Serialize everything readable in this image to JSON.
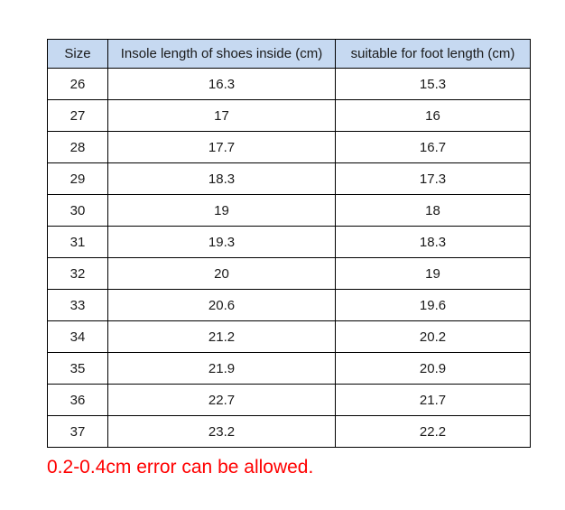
{
  "chart_data": {
    "type": "table",
    "columns": [
      "Size",
      "Insole length of shoes inside (cm)",
      "suitable for foot length (cm)"
    ],
    "rows": [
      [
        "26",
        "16.3",
        "15.3"
      ],
      [
        "27",
        "17",
        "16"
      ],
      [
        "28",
        "17.7",
        "16.7"
      ],
      [
        "29",
        "18.3",
        "17.3"
      ],
      [
        "30",
        "19",
        "18"
      ],
      [
        "31",
        "19.3",
        "18.3"
      ],
      [
        "32",
        "20",
        "19"
      ],
      [
        "33",
        "20.6",
        "19.6"
      ],
      [
        "34",
        "21.2",
        "20.2"
      ],
      [
        "35",
        "21.9",
        "20.9"
      ],
      [
        "36",
        "22.7",
        "21.7"
      ],
      [
        "37",
        "23.2",
        "22.2"
      ]
    ],
    "annotation": "0.2-0.4cm error can be allowed."
  },
  "style": {
    "header_bg": "#c6d9f1",
    "border_color": "#000000",
    "text_color": "#1a1a1a",
    "note_color": "#ff0000"
  },
  "note": {
    "text": "0.2-0.4cm error can be allowed."
  }
}
